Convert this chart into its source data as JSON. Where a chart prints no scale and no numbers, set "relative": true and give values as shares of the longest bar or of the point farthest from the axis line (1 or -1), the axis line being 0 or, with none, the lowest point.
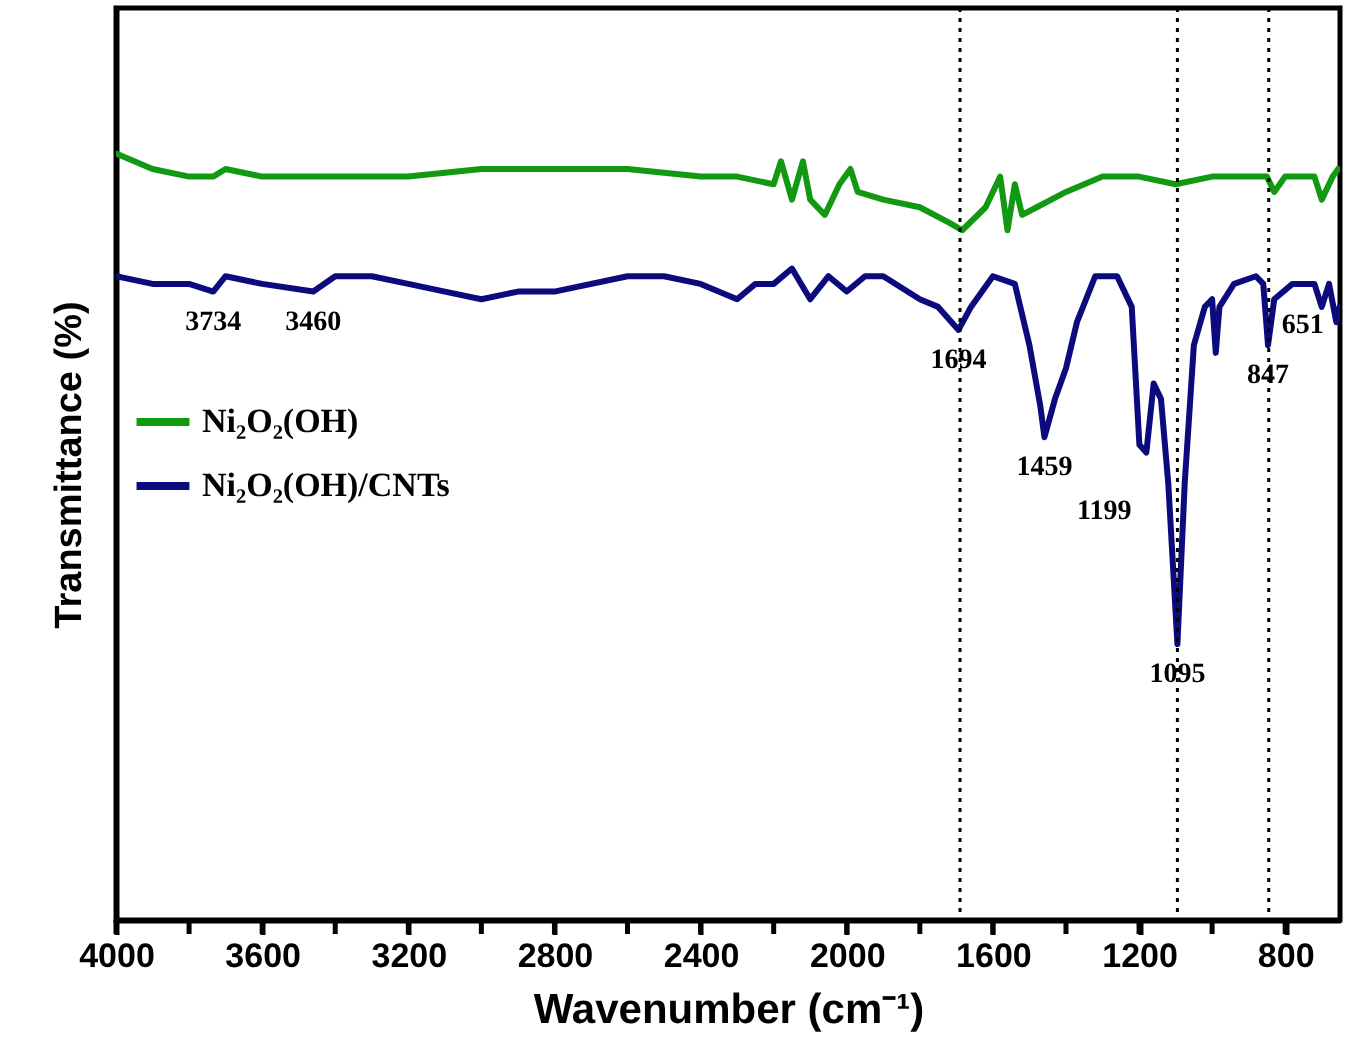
{
  "chart_data": {
    "type": "line",
    "relative": true,
    "xlabel": "Wavenumber (cm⁻¹)",
    "ylabel": "Transmittance (%)",
    "xlim": [
      4000,
      650
    ],
    "xticks": [
      4000,
      {
        "value": 3800,
        "label": null
      },
      3600,
      {
        "value": 3400,
        "label": null
      },
      3200,
      {
        "value": 3000,
        "label": null
      },
      2800,
      {
        "value": 2600,
        "label": null
      },
      2400,
      {
        "value": 2200,
        "label": null
      },
      2000,
      {
        "value": 1800,
        "label": null
      },
      1600,
      {
        "value": 1400,
        "label": null
      },
      1200,
      {
        "value": 1000,
        "label": null
      },
      800
    ],
    "tick_labels": "x",
    "legend": "left",
    "marker": "none",
    "line_style": "solid",
    "grid": false,
    "series": [
      {
        "name": "Ni₂O₂(OH)",
        "color": "#129912",
        "x": [
          4000,
          3900,
          3800,
          3734,
          3700,
          3600,
          3500,
          3400,
          3300,
          3200,
          3000,
          2800,
          2600,
          2400,
          2300,
          2200,
          2180,
          2150,
          2120,
          2100,
          2060,
          2020,
          1990,
          1970,
          1900,
          1800,
          1720,
          1684,
          1620,
          1580,
          1560,
          1540,
          1520,
          1480,
          1400,
          1300,
          1200,
          1100,
          1000,
          900,
          850,
          830,
          800,
          720,
          700,
          670,
          655
        ],
        "values": [
          1,
          0.98,
          0.97,
          0.97,
          0.98,
          0.97,
          0.97,
          0.97,
          0.97,
          0.97,
          0.98,
          0.98,
          0.98,
          0.97,
          0.97,
          0.96,
          0.99,
          0.94,
          0.99,
          0.94,
          0.92,
          0.96,
          0.98,
          0.95,
          0.94,
          0.93,
          0.91,
          0.9,
          0.93,
          0.97,
          0.9,
          0.96,
          0.92,
          0.93,
          0.95,
          0.97,
          0.97,
          0.96,
          0.97,
          0.97,
          0.97,
          0.95,
          0.97,
          0.97,
          0.94,
          0.97,
          0.98
        ]
      },
      {
        "name": "Ni₂O₂(OH)/CNTs",
        "color": "#0b0b7e",
        "x": [
          4000,
          3900,
          3800,
          3734,
          3700,
          3600,
          3460,
          3400,
          3300,
          3200,
          3100,
          3000,
          2900,
          2800,
          2600,
          2500,
          2400,
          2300,
          2250,
          2200,
          2150,
          2100,
          2050,
          2000,
          1950,
          1900,
          1800,
          1750,
          1694,
          1660,
          1600,
          1540,
          1500,
          1470,
          1459,
          1430,
          1400,
          1370,
          1320,
          1260,
          1220,
          1199,
          1180,
          1160,
          1140,
          1120,
          1095,
          1075,
          1050,
          1020,
          1000,
          990,
          980,
          940,
          880,
          860,
          847,
          830,
          780,
          720,
          700,
          680,
          660,
          651
        ],
        "values": [
          0.84,
          0.83,
          0.83,
          0.82,
          0.84,
          0.83,
          0.82,
          0.84,
          0.84,
          0.83,
          0.82,
          0.81,
          0.82,
          0.82,
          0.84,
          0.84,
          0.83,
          0.81,
          0.83,
          0.83,
          0.85,
          0.81,
          0.84,
          0.82,
          0.84,
          0.84,
          0.81,
          0.8,
          0.77,
          0.8,
          0.84,
          0.83,
          0.75,
          0.67,
          0.63,
          0.68,
          0.72,
          0.78,
          0.84,
          0.84,
          0.8,
          0.62,
          0.61,
          0.7,
          0.68,
          0.57,
          0.36,
          0.57,
          0.75,
          0.8,
          0.81,
          0.74,
          0.8,
          0.83,
          0.84,
          0.83,
          0.75,
          0.81,
          0.83,
          0.83,
          0.8,
          0.83,
          0.78,
          0.8
        ]
      }
    ],
    "ref_lines": [
      {
        "axis": "x",
        "value": 1690,
        "color": "#000000",
        "line_style": "dotted"
      },
      {
        "axis": "x",
        "value": 1095,
        "color": "#000000",
        "line_style": "dotted"
      },
      {
        "axis": "x",
        "value": 845,
        "color": "#000000",
        "line_style": "dotted"
      }
    ],
    "annotations": [
      {
        "text": "3734",
        "x": 3734,
        "y": 0.82
      },
      {
        "text": "3460",
        "x": 3460,
        "y": 0.82
      },
      {
        "text": "1694",
        "x": 1694,
        "y": 0.77
      },
      {
        "text": "1459",
        "x": 1459,
        "y": 0.63
      },
      {
        "text": "1199",
        "x": 1199,
        "y": 0.62
      },
      {
        "text": "1095",
        "x": 1095,
        "y": 0.36
      },
      {
        "text": "847",
        "x": 847,
        "y": 0.75
      },
      {
        "text": "651",
        "x": 651,
        "y": 0.8
      }
    ]
  }
}
